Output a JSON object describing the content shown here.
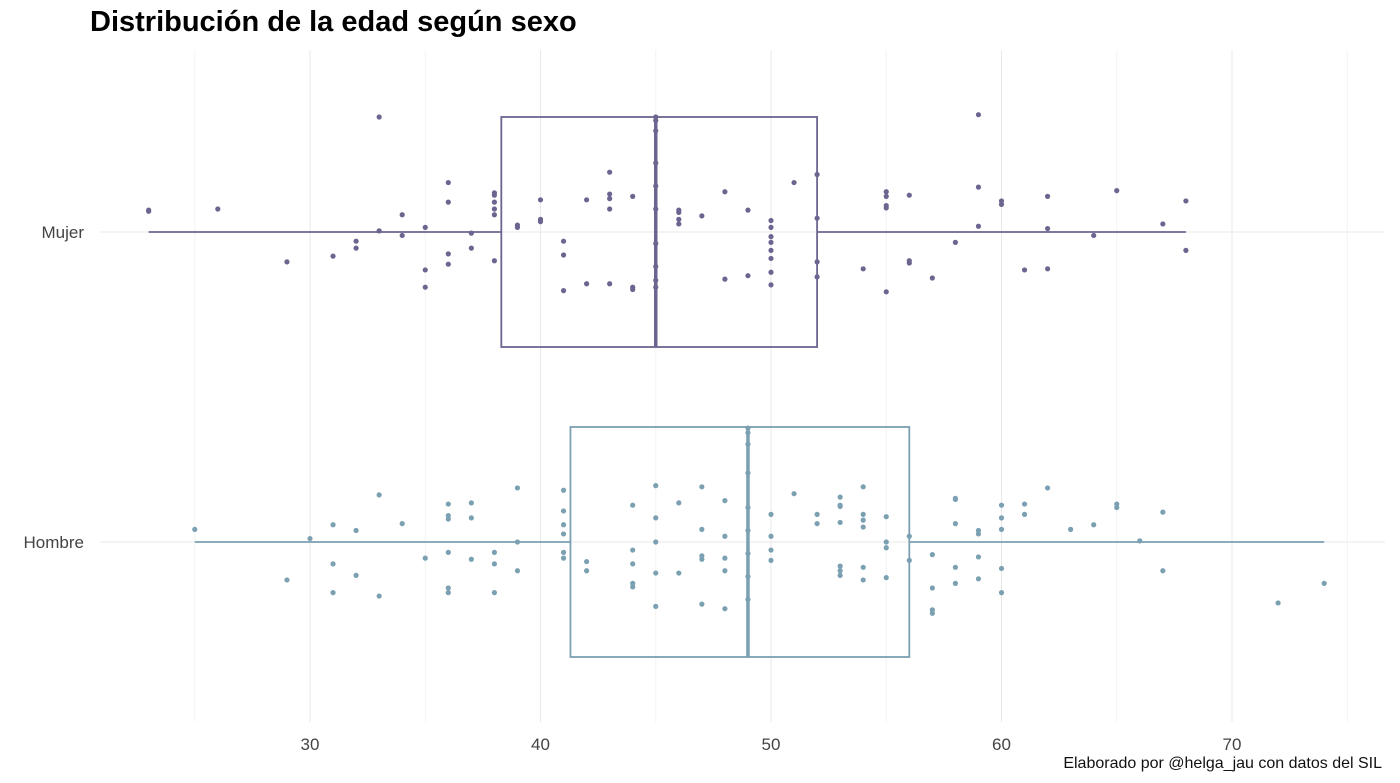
{
  "chart_data": {
    "type": "boxplot",
    "title": "Distribución de la edad según sexo",
    "caption": "Elaborado por @helga_jau con datos del SIL",
    "xlabel": "",
    "ylabel": "",
    "xlim": [
      21.5,
      76
    ],
    "x_ticks": [
      30,
      40,
      50,
      60,
      70
    ],
    "categories": [
      "Mujer",
      "Hombre"
    ],
    "grid": true,
    "legend": "none",
    "series": [
      {
        "category": "Mujer",
        "color": "#6b6590",
        "box": {
          "min": 23,
          "q1": 38.3,
          "median": 45,
          "q3": 52,
          "max": 68
        },
        "points": [
          [
            23,
            0.18
          ],
          [
            23,
            0.19
          ],
          [
            26,
            0.2
          ],
          [
            29,
            -0.26
          ],
          [
            31,
            -0.21
          ],
          [
            32,
            -0.14
          ],
          [
            32,
            -0.08
          ],
          [
            33,
            1.0
          ],
          [
            33,
            0.01
          ],
          [
            34,
            0.15
          ],
          [
            34,
            -0.03
          ],
          [
            35,
            -0.33
          ],
          [
            35,
            -0.48
          ],
          [
            35,
            0.04
          ],
          [
            36,
            0.43
          ],
          [
            36,
            0.26
          ],
          [
            36,
            -0.19
          ],
          [
            36,
            -0.28
          ],
          [
            37,
            -0.14
          ],
          [
            37,
            -0.01
          ],
          [
            38,
            0.34
          ],
          [
            38,
            0.32
          ],
          [
            38,
            0.26
          ],
          [
            38,
            0.2
          ],
          [
            38,
            0.15
          ],
          [
            38,
            -0.25
          ],
          [
            39,
            0.06
          ],
          [
            39,
            0.04
          ],
          [
            40,
            0.11
          ],
          [
            40,
            0.09
          ],
          [
            40,
            0.28
          ],
          [
            41,
            -0.08
          ],
          [
            41,
            -0.2
          ],
          [
            41,
            -0.51
          ],
          [
            42,
            0.28
          ],
          [
            42,
            -0.45
          ],
          [
            43,
            0.52
          ],
          [
            43,
            0.33
          ],
          [
            43,
            0.29
          ],
          [
            43,
            0.2
          ],
          [
            43,
            -0.45
          ],
          [
            44,
            0.31
          ],
          [
            44,
            -0.48
          ],
          [
            44,
            -0.5
          ],
          [
            45,
            1.0
          ],
          [
            45,
            0.97
          ],
          [
            45,
            0.88
          ],
          [
            45,
            0.6
          ],
          [
            45,
            0.4
          ],
          [
            45,
            0.2
          ],
          [
            45,
            -0.1
          ],
          [
            45,
            -0.3
          ],
          [
            45,
            -0.42
          ],
          [
            45,
            -0.48
          ],
          [
            46,
            0.19
          ],
          [
            46,
            0.17
          ],
          [
            46,
            0.11
          ],
          [
            46,
            0.07
          ],
          [
            47,
            0.14
          ],
          [
            48,
            0.35
          ],
          [
            48,
            -0.41
          ],
          [
            49,
            0.19
          ],
          [
            49,
            -0.38
          ],
          [
            50,
            0.1
          ],
          [
            50,
            0.04
          ],
          [
            50,
            -0.04
          ],
          [
            50,
            -0.09
          ],
          [
            50,
            -0.16
          ],
          [
            50,
            -0.23
          ],
          [
            50,
            -0.35
          ],
          [
            50,
            -0.46
          ],
          [
            51,
            0.43
          ],
          [
            52,
            0.5
          ],
          [
            52,
            0.12
          ],
          [
            52,
            -0.26
          ],
          [
            52,
            -0.39
          ],
          [
            54,
            -0.32
          ],
          [
            55,
            0.35
          ],
          [
            55,
            0.31
          ],
          [
            55,
            0.23
          ],
          [
            55,
            0.21
          ],
          [
            55,
            -0.52
          ],
          [
            56,
            0.32
          ],
          [
            56,
            -0.25
          ],
          [
            56,
            -0.27
          ],
          [
            57,
            -0.4
          ],
          [
            58,
            -0.09
          ],
          [
            59,
            1.02
          ],
          [
            59,
            0.39
          ],
          [
            59,
            0.05
          ],
          [
            60,
            0.27
          ],
          [
            60,
            0.24
          ],
          [
            61,
            -0.33
          ],
          [
            62,
            0.31
          ],
          [
            62,
            -0.32
          ],
          [
            62,
            0.03
          ],
          [
            64,
            -0.03
          ],
          [
            65,
            0.36
          ],
          [
            67,
            0.07
          ],
          [
            68,
            0.27
          ],
          [
            68,
            -0.16
          ]
        ]
      },
      {
        "category": "Hombre",
        "color": "#7aa0b2",
        "box": {
          "min": 25,
          "q1": 41.3,
          "median": 49,
          "q3": 56,
          "max": 74
        },
        "points": [
          [
            25,
            0.11
          ],
          [
            29,
            -0.33
          ],
          [
            30,
            0.03
          ],
          [
            31,
            0.15
          ],
          [
            31,
            -0.19
          ],
          [
            31,
            -0.44
          ],
          [
            32,
            0.1
          ],
          [
            32,
            -0.29
          ],
          [
            33,
            0.41
          ],
          [
            33,
            -0.47
          ],
          [
            34,
            0.16
          ],
          [
            35,
            -0.14
          ],
          [
            36,
            0.33
          ],
          [
            36,
            0.23
          ],
          [
            36,
            0.2
          ],
          [
            36,
            -0.09
          ],
          [
            36,
            -0.4
          ],
          [
            36,
            -0.44
          ],
          [
            37,
            0.34
          ],
          [
            37,
            0.21
          ],
          [
            37,
            -0.15
          ],
          [
            38,
            -0.09
          ],
          [
            38,
            -0.19
          ],
          [
            38,
            -0.44
          ],
          [
            39,
            0.47
          ],
          [
            39,
            0.0
          ],
          [
            39,
            -0.25
          ],
          [
            41,
            0.45
          ],
          [
            41,
            0.27
          ],
          [
            41,
            0.15
          ],
          [
            41,
            0.07
          ],
          [
            41,
            -0.09
          ],
          [
            41,
            -0.14
          ],
          [
            42,
            -0.17
          ],
          [
            42,
            -0.25
          ],
          [
            44,
            0.32
          ],
          [
            44,
            -0.07
          ],
          [
            44,
            -0.19
          ],
          [
            44,
            -0.36
          ],
          [
            44,
            -0.39
          ],
          [
            45,
            0.49
          ],
          [
            45,
            0.21
          ],
          [
            45,
            0.0
          ],
          [
            45,
            -0.27
          ],
          [
            45,
            -0.56
          ],
          [
            46,
            0.34
          ],
          [
            46,
            -0.27
          ],
          [
            47,
            0.48
          ],
          [
            47,
            0.11
          ],
          [
            47,
            -0.12
          ],
          [
            47,
            -0.15
          ],
          [
            47,
            -0.54
          ],
          [
            48,
            0.36
          ],
          [
            48,
            0.05
          ],
          [
            48,
            -0.14
          ],
          [
            48,
            -0.25
          ],
          [
            48,
            -0.58
          ],
          [
            49,
            0.99
          ],
          [
            49,
            0.95
          ],
          [
            49,
            0.85
          ],
          [
            49,
            0.6
          ],
          [
            49,
            0.3
          ],
          [
            49,
            0.1
          ],
          [
            49,
            -0.1
          ],
          [
            49,
            -0.3
          ],
          [
            49,
            -0.5
          ],
          [
            50,
            0.24
          ],
          [
            50,
            0.05
          ],
          [
            50,
            -0.07
          ],
          [
            50,
            -0.16
          ],
          [
            51,
            0.42
          ],
          [
            52,
            0.24
          ],
          [
            52,
            0.16
          ],
          [
            53,
            0.39
          ],
          [
            53,
            0.32
          ],
          [
            53,
            0.31
          ],
          [
            53,
            0.17
          ],
          [
            53,
            -0.21
          ],
          [
            53,
            -0.25
          ],
          [
            53,
            -0.29
          ],
          [
            54,
            0.48
          ],
          [
            54,
            0.24
          ],
          [
            54,
            0.19
          ],
          [
            54,
            0.13
          ],
          [
            54,
            -0.22
          ],
          [
            54,
            -0.33
          ],
          [
            55,
            0.22
          ],
          [
            55,
            0.0
          ],
          [
            55,
            -0.05
          ],
          [
            55,
            -0.31
          ],
          [
            56,
            0.05
          ],
          [
            56,
            -0.16
          ],
          [
            57,
            -0.11
          ],
          [
            57,
            -0.4
          ],
          [
            57,
            -0.59
          ],
          [
            57,
            -0.62
          ],
          [
            58,
            0.38
          ],
          [
            58,
            0.37
          ],
          [
            58,
            -0.22
          ],
          [
            58,
            -0.36
          ],
          [
            58,
            0.16
          ],
          [
            59,
            0.07
          ],
          [
            59,
            0.1
          ],
          [
            59,
            -0.13
          ],
          [
            59,
            -0.32
          ],
          [
            60,
            0.32
          ],
          [
            60,
            0.21
          ],
          [
            60,
            0.11
          ],
          [
            60,
            -0.23
          ],
          [
            60,
            -0.44
          ],
          [
            61,
            0.33
          ],
          [
            61,
            0.24
          ],
          [
            62,
            0.47
          ],
          [
            63,
            0.11
          ],
          [
            64,
            0.15
          ],
          [
            65,
            0.33
          ],
          [
            65,
            0.3
          ],
          [
            66,
            0.01
          ],
          [
            67,
            0.26
          ],
          [
            67,
            -0.25
          ],
          [
            72,
            -0.53
          ],
          [
            74,
            -0.36
          ]
        ]
      }
    ]
  }
}
